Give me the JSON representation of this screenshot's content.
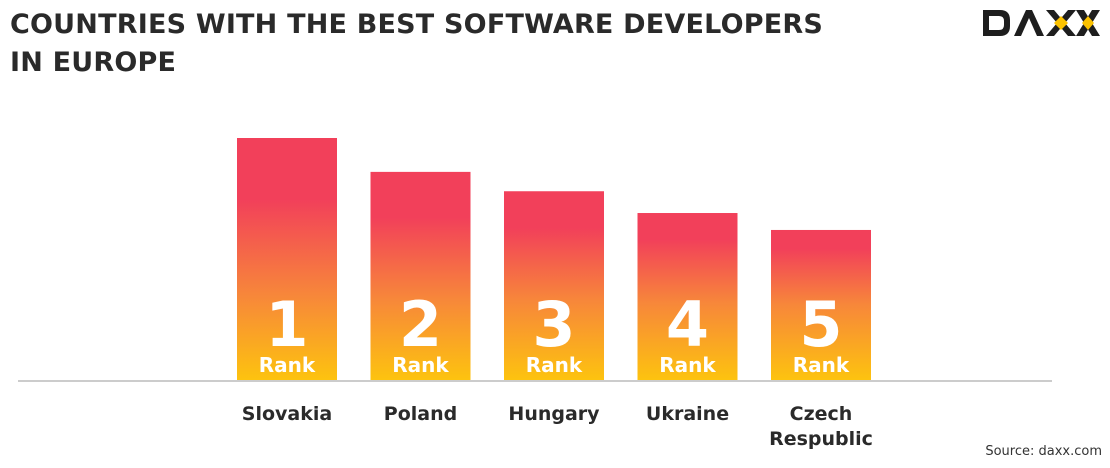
{
  "logo_text": "DAXX",
  "source": "Source: daxx.com",
  "colors": {
    "bar_top": "#f2405a",
    "bar_mid": "#f7873a",
    "bar_bottom": "#fdc30f",
    "logo_accent": "#fcc200",
    "axis": "#cccccc"
  },
  "chart_data": {
    "type": "bar",
    "title_lines": [
      "COUNTRIES WITH THE BEST SOFTWARE DEVELOPERS",
      "IN EUROPE"
    ],
    "categories": [
      [
        "Slovakia"
      ],
      [
        "Poland"
      ],
      [
        "Hungary"
      ],
      [
        "Ukraine"
      ],
      [
        "Czech",
        "Respublic"
      ]
    ],
    "ranks": [
      "1",
      "2",
      "3",
      "4",
      "5"
    ],
    "rank_label": "Rank",
    "relative_values": [
      1.0,
      0.86,
      0.78,
      0.69,
      0.62
    ],
    "grid": false,
    "legend": "none"
  }
}
